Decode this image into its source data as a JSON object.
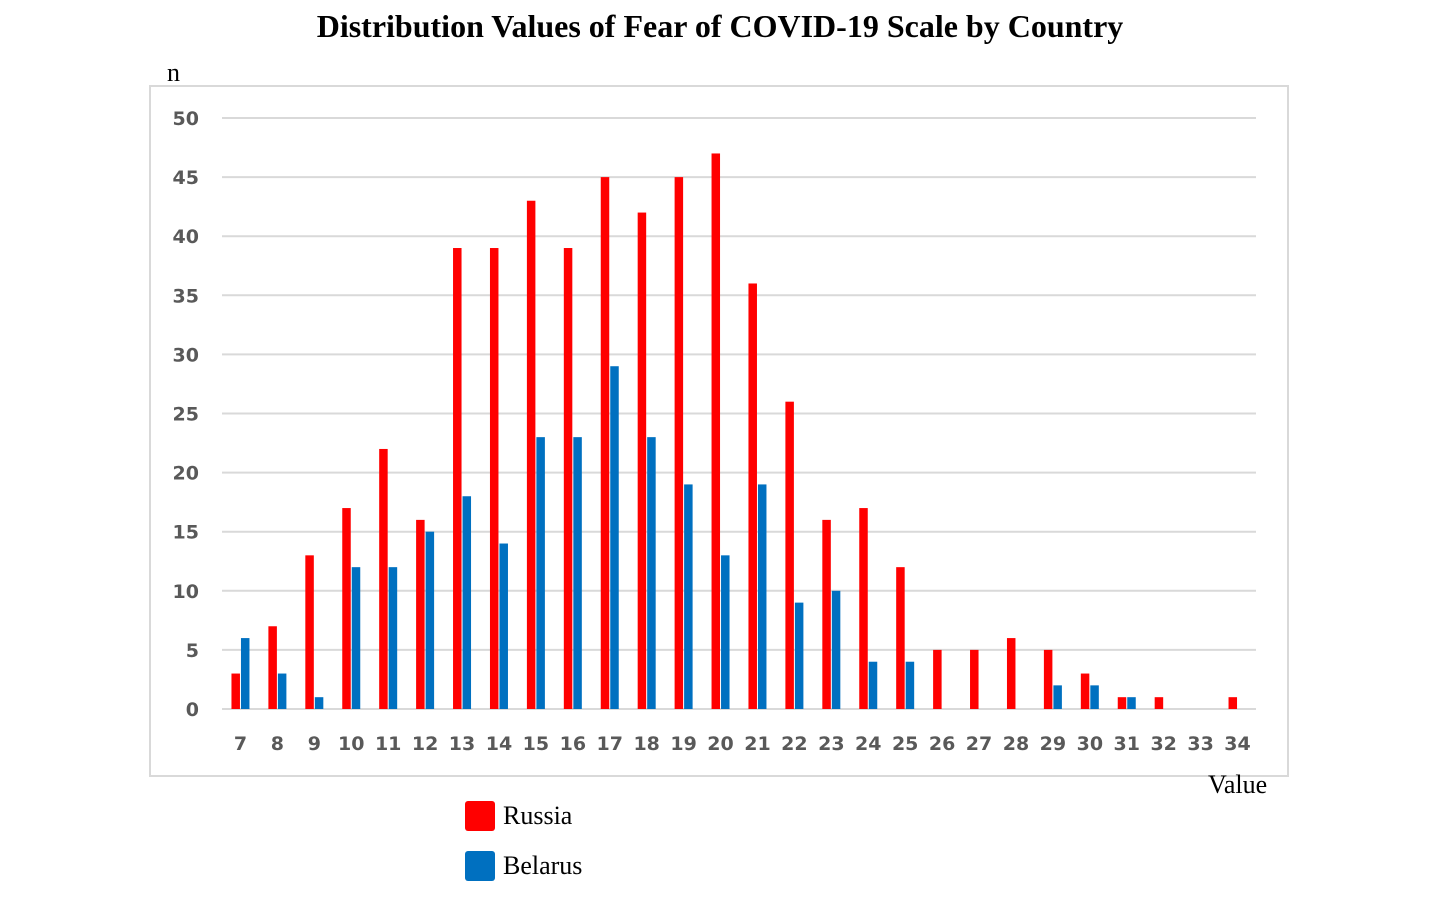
{
  "chart_data": {
    "type": "bar",
    "title": "Distribution Values of Fear of COVID-19 Scale by Country",
    "ylabel": "n",
    "xlabel": "Value",
    "ylim": [
      0,
      50
    ],
    "yticks": [
      0,
      5,
      10,
      15,
      20,
      25,
      30,
      35,
      40,
      45,
      50
    ],
    "grid": true,
    "legend_position": "bottom-left",
    "categories": [
      "7",
      "8",
      "9",
      "10",
      "11",
      "12",
      "13",
      "14",
      "15",
      "16",
      "17",
      "18",
      "19",
      "20",
      "21",
      "22",
      "23",
      "24",
      "25",
      "26",
      "27",
      "28",
      "29",
      "30",
      "31",
      "32",
      "33",
      "34"
    ],
    "series": [
      {
        "name": "Russia",
        "color": "#ff0000",
        "values": [
          3,
          7,
          13,
          17,
          22,
          16,
          39,
          39,
          43,
          39,
          45,
          42,
          45,
          47,
          36,
          26,
          16,
          17,
          12,
          5,
          5,
          6,
          5,
          3,
          1,
          1,
          0,
          1
        ]
      },
      {
        "name": "Belarus",
        "color": "#0070c0",
        "values": [
          6,
          3,
          1,
          12,
          12,
          15,
          18,
          14,
          23,
          23,
          29,
          23,
          19,
          13,
          19,
          9,
          10,
          4,
          4,
          0,
          0,
          0,
          2,
          2,
          1,
          0,
          0,
          0
        ]
      }
    ]
  }
}
